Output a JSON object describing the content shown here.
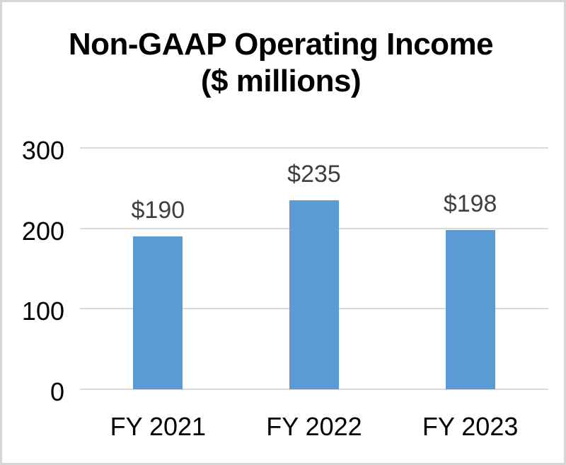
{
  "chart_data": {
    "type": "bar",
    "title": "Non-GAAP Operating Income ($ millions)",
    "title_line1": "Non-GAAP Operating Income",
    "title_line2": "($ millions)",
    "categories": [
      "FY 2021",
      "FY 2022",
      "FY 2023"
    ],
    "values": [
      190,
      235,
      198
    ],
    "data_labels": [
      "$190",
      "$235",
      "$198"
    ],
    "y_ticks": [
      0,
      100,
      200,
      300
    ],
    "ylim": [
      0,
      300
    ],
    "grid": true,
    "legend": "none",
    "colors": {
      "bar": "#5B9BD5",
      "data_label": "#404040",
      "gridline": "#D9D9D9",
      "axis_text": "#000000",
      "frame_border": "#D6D6D6",
      "background": "#FFFFFF"
    }
  }
}
